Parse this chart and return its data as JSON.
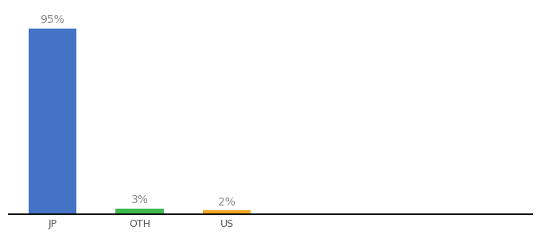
{
  "categories": [
    "JP",
    "OTH",
    "US"
  ],
  "values": [
    95,
    3,
    2
  ],
  "bar_colors": [
    "#4472c4",
    "#3dba4e",
    "#f5a623"
  ],
  "value_labels": [
    "95%",
    "3%",
    "2%"
  ],
  "background_color": "#ffffff",
  "ylim": [
    0,
    105
  ],
  "bar_width": 0.55,
  "label_fontsize": 10,
  "tick_fontsize": 9,
  "axis_line_color": "#111111",
  "label_color": "#888888",
  "tick_color": "#555555"
}
